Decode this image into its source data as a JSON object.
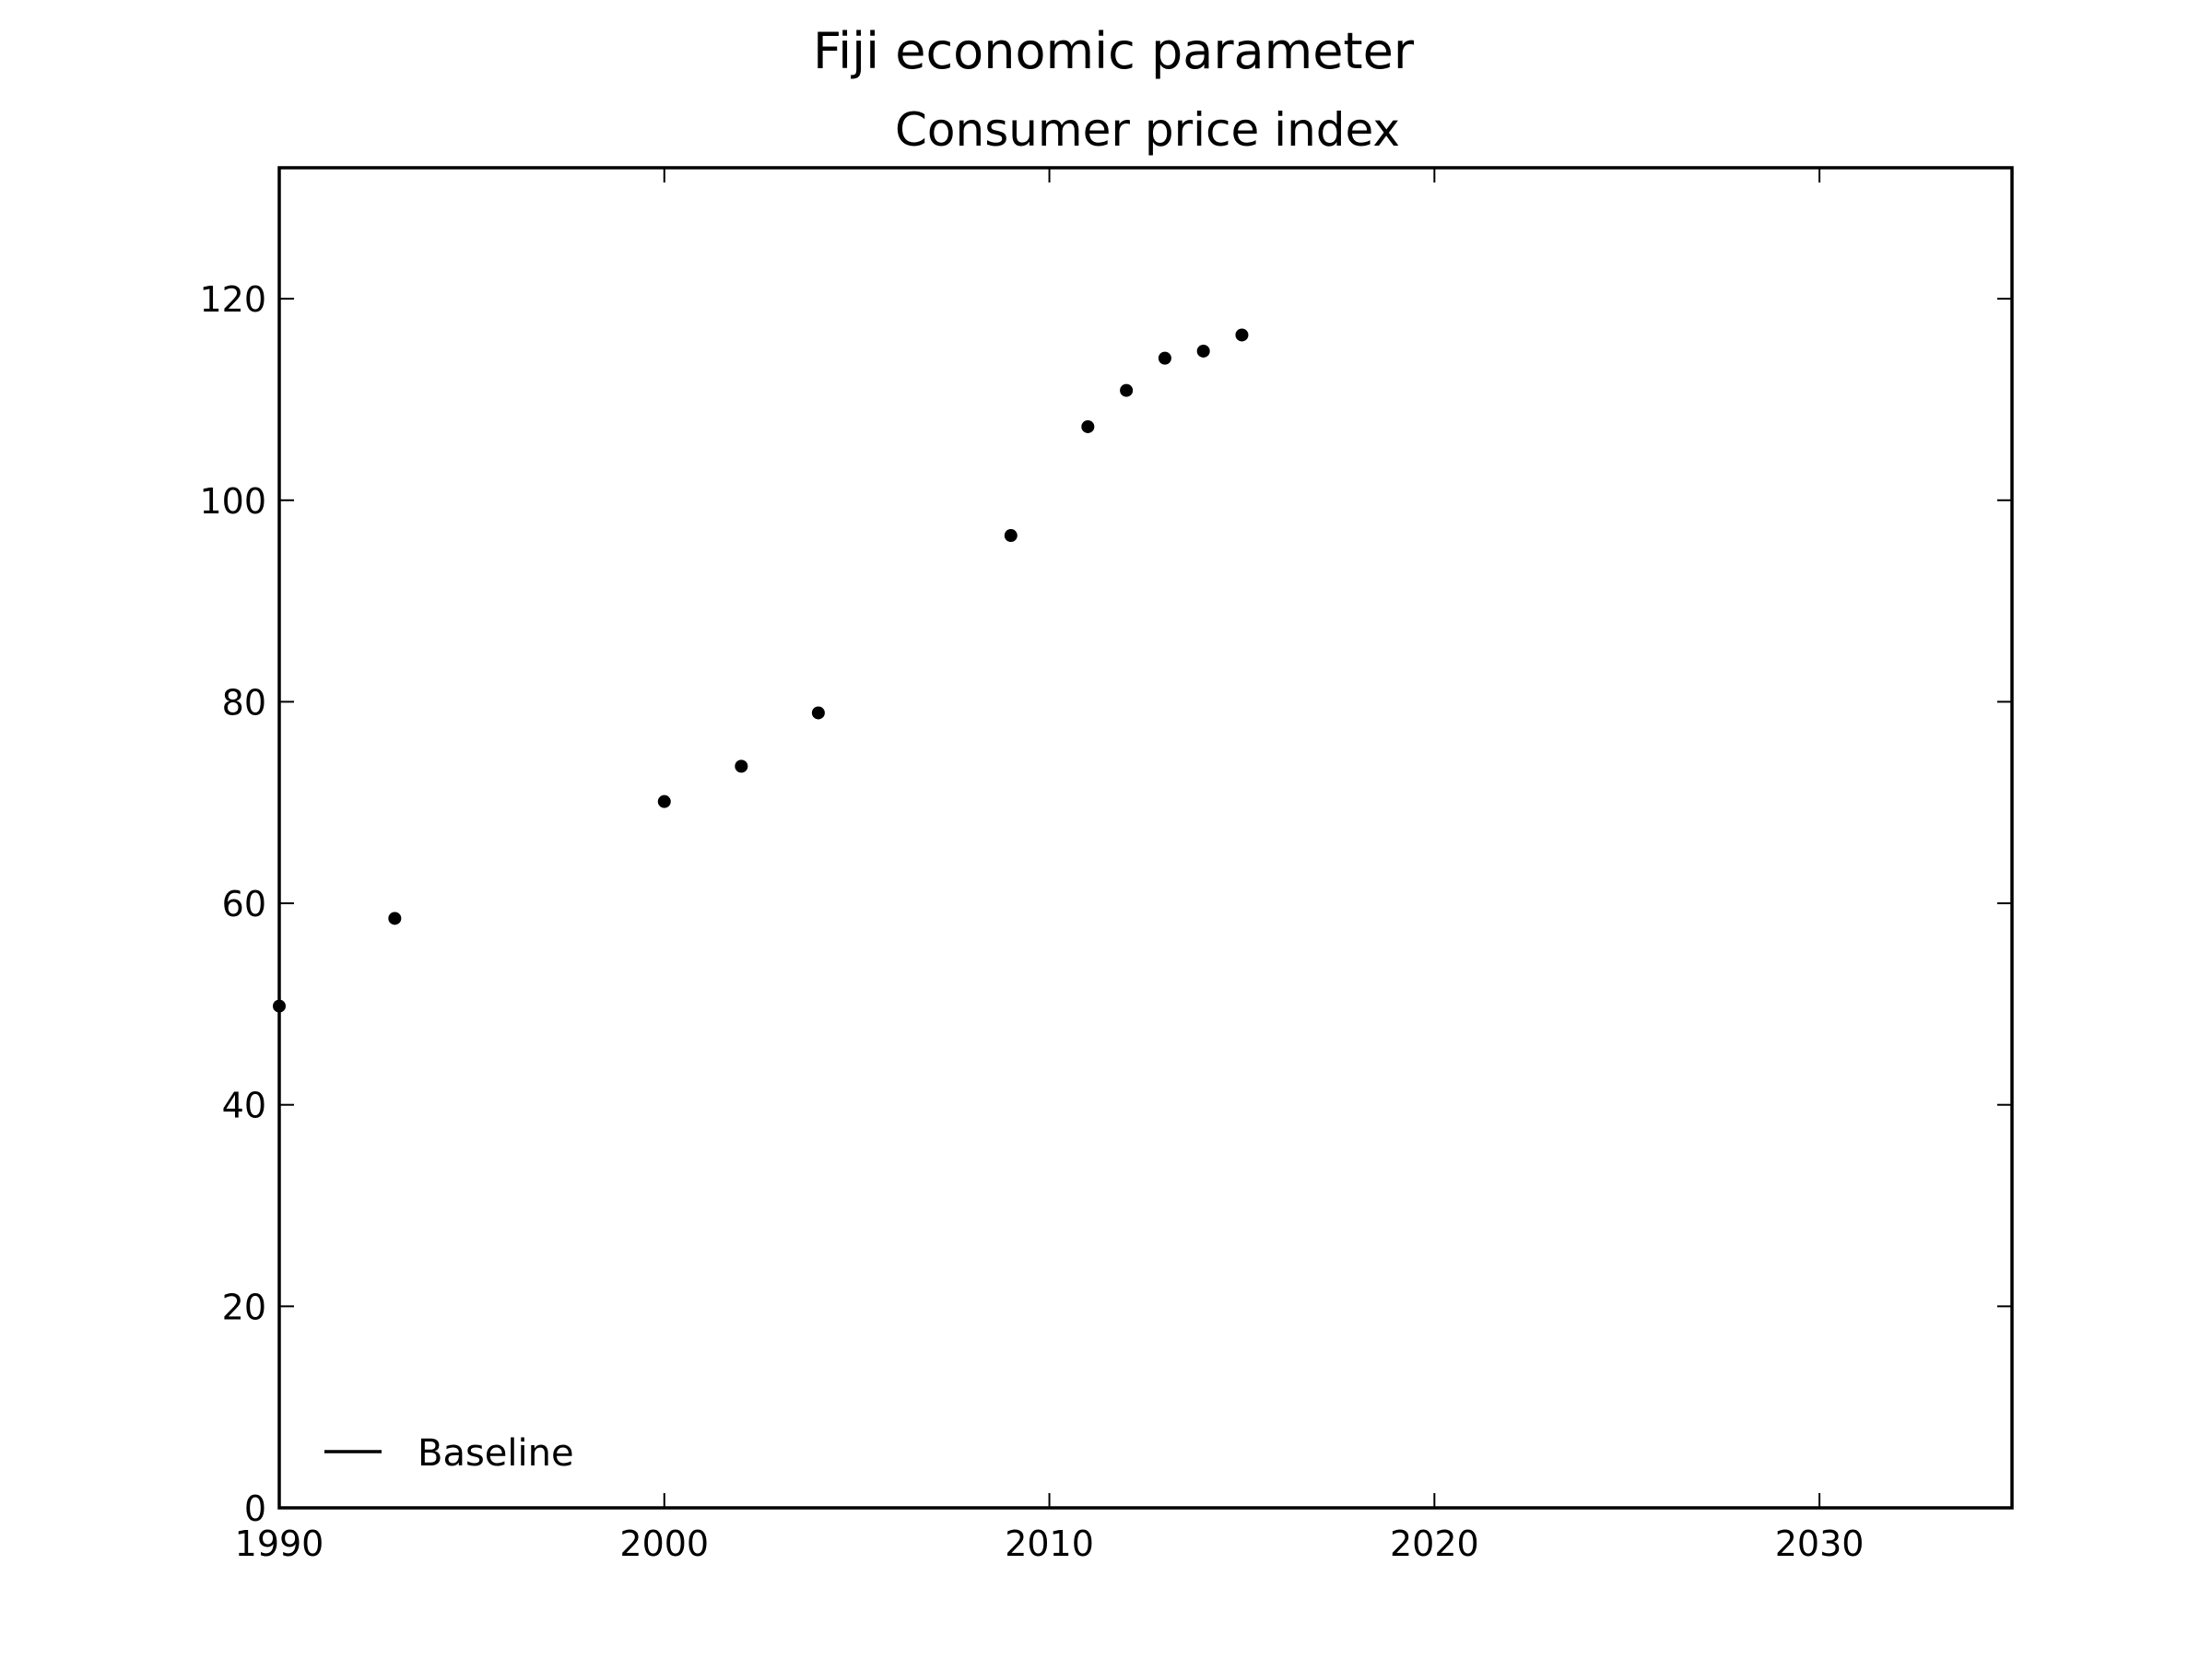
{
  "figure": {
    "title": "Fiji economic parameter"
  },
  "chart_data": {
    "type": "scatter",
    "title": "Consumer price index",
    "xlabel": "",
    "ylabel": "",
    "xlim": [
      1990,
      2035
    ],
    "ylim": [
      0,
      133
    ],
    "xticks": [
      1990,
      2000,
      2010,
      2020,
      2030
    ],
    "yticks": [
      0,
      20,
      40,
      60,
      80,
      100,
      120
    ],
    "grid": false,
    "legend": {
      "placement": "lower-left",
      "entries": [
        {
          "label": "Baseline",
          "marker": "line",
          "color": "#000000"
        }
      ]
    },
    "series": [
      {
        "color": "#000000",
        "x": [
          1990,
          1993,
          2000,
          2002,
          2004,
          2009,
          2011,
          2012,
          2013,
          2014,
          2015
        ],
        "y": [
          49.8,
          58.5,
          70.1,
          73.6,
          78.9,
          96.5,
          107.3,
          110.9,
          114.1,
          114.8,
          116.4
        ]
      }
    ]
  }
}
